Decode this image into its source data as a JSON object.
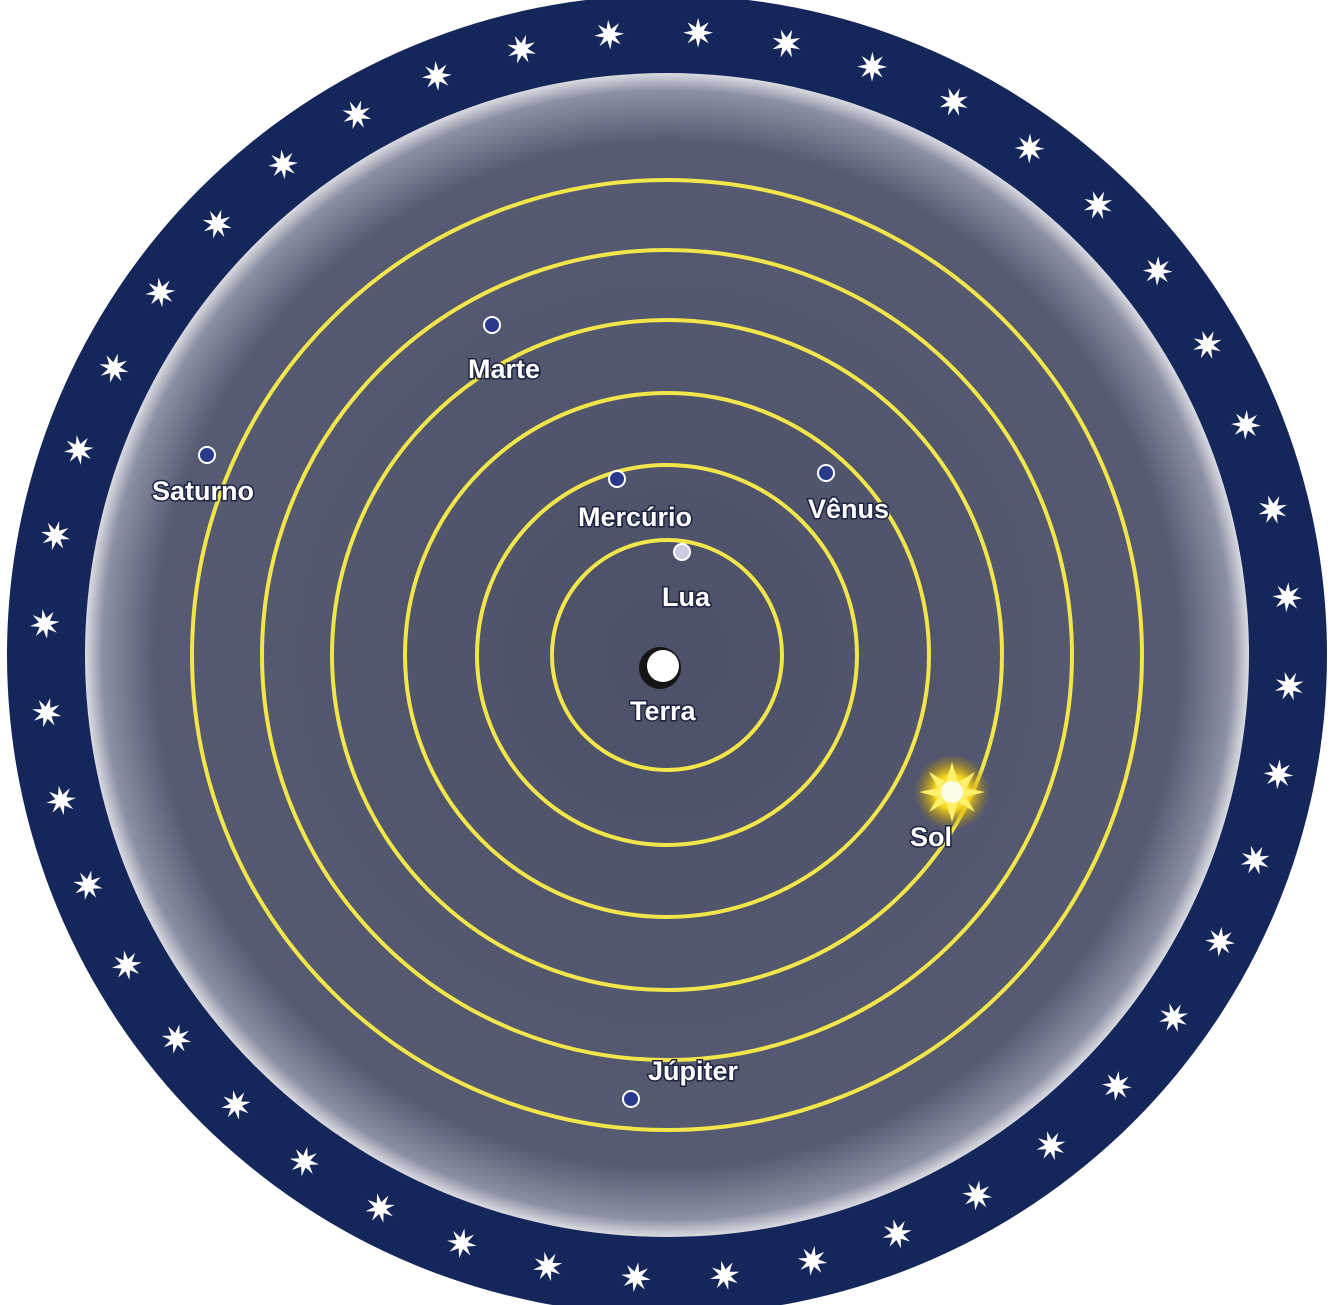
{
  "colors": {
    "background": "#ffffff",
    "star_band": "#15265a",
    "inner_disc": "#52586f",
    "orbit": "#f2e64b",
    "planet": "#2a3a8a",
    "earth": "#ffffff",
    "sun": "#f5d41a",
    "label": "#ffffff"
  },
  "bodies": [
    {
      "id": "terra",
      "label": "Terra"
    },
    {
      "id": "lua",
      "label": "Lua"
    },
    {
      "id": "mercurio",
      "label": "Mercúrio"
    },
    {
      "id": "venus",
      "label": "Vênus"
    },
    {
      "id": "sol",
      "label": "Sol"
    },
    {
      "id": "marte",
      "label": "Marte"
    },
    {
      "id": "jupiter",
      "label": "Júpiter"
    },
    {
      "id": "saturno",
      "label": "Saturno"
    }
  ],
  "star_icon": "eight-point-star-icon",
  "star_count": 44
}
